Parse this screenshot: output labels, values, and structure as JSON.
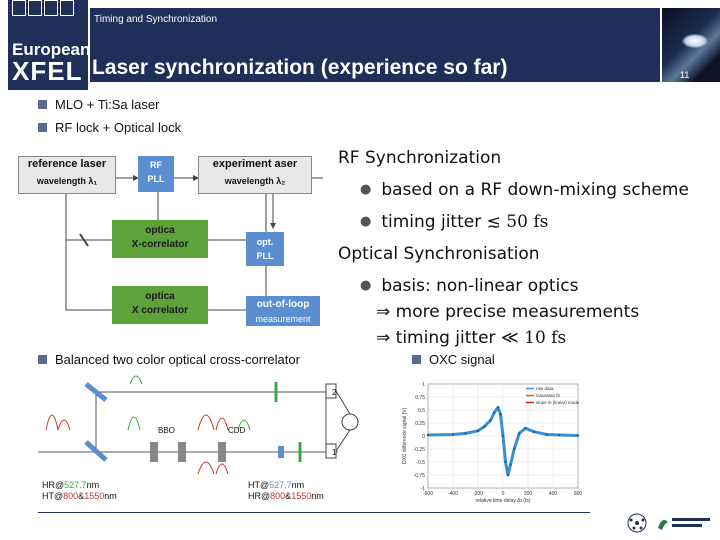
{
  "header": {
    "kicker": "Timing and Synchronization",
    "title": "Laser synchronization (experience so far)",
    "logo_line1": "European",
    "logo_line2": "XFEL",
    "page_number": "11"
  },
  "top_bullets": [
    "MLO + Ti:Sa laser",
    "RF lock + Optical lock"
  ],
  "diagram": {
    "reference_laser": "reference laser",
    "ref_wavelength": "wavelength λ₁",
    "rf_pll": [
      "RF",
      "PLL"
    ],
    "experiment_laser": "experiment  aser",
    "exp_wavelength": "wavelength λ₂",
    "optical_xcorr1": [
      "optica",
      "X-correlator"
    ],
    "opt_pll": [
      "opt.",
      "PLL"
    ],
    "optical_xcorr2": [
      "optica",
      "X correlator"
    ],
    "out_of_loop": [
      "out-of-loop",
      "measurement"
    ]
  },
  "rf_panel": {
    "rf_heading": "RF Synchronization",
    "rf_point1": "based on a RF down-mixing scheme",
    "rf_point2": "timing jitter",
    "rf_point2_symbol": "≲",
    "rf_point2_value": "50 fs",
    "opt_heading": "Optical Synchronisation",
    "opt_point": "basis: non-linear optics",
    "arrow_symbol": "⇒",
    "arrow1": "more precise measurements",
    "arrow2": "timing jitter",
    "arrow2_symbol": "≪",
    "arrow2_value": "10 fs"
  },
  "section2": {
    "left_label": "Balanced two color optical cross-correlator",
    "right_label": "OXC signal"
  },
  "xcorr": {
    "bbo": "BBO",
    "cdd": "CDD",
    "hr_left": "HR@",
    "hr_left_val": "527.7",
    "nm1": "nm",
    "ht_left": "HT@",
    "ht_left_a": "800",
    "amp": "&",
    "ht_left_b": "1550",
    "nm2": "nm",
    "ht_right": "HT@",
    "ht_right_val": "527.7",
    "nm3": "nm",
    "hr_right": "HR@",
    "hr_right_a": "800",
    "hr_right_b": "1550",
    "nm4": "nm",
    "det1": "1",
    "det2": "2"
  },
  "chart_data": {
    "type": "line",
    "title": "",
    "xlabel": "relative time delay Δt (fs)",
    "ylabel": "OXC difference signal (V)",
    "xlim": [
      -600,
      600
    ],
    "ylim": [
      -1,
      1
    ],
    "xticks": [
      -600,
      -400,
      -200,
      0,
      200,
      400,
      600
    ],
    "yticks": [
      1,
      0.75,
      0.5,
      0.25,
      0,
      -0.25,
      -0.5,
      -0.75,
      -1
    ],
    "legend": [
      "raw data",
      "Gaussian fit",
      "slope in (linear) mode"
    ],
    "series": [
      {
        "name": "raw data",
        "x": [
          -600,
          -400,
          -300,
          -200,
          -150,
          -100,
          -70,
          -40,
          -20,
          0,
          20,
          40,
          60,
          90,
          130,
          180,
          250,
          350,
          450,
          600
        ],
        "y": [
          0.02,
          0.03,
          0.05,
          0.1,
          0.18,
          0.3,
          0.45,
          0.55,
          0.42,
          0.0,
          -0.5,
          -0.75,
          -0.55,
          -0.25,
          0.05,
          0.15,
          0.08,
          0.03,
          0.02,
          0.01
        ]
      }
    ],
    "colors": [
      "#3a8fd0",
      "#c07030",
      "#d02020"
    ]
  }
}
